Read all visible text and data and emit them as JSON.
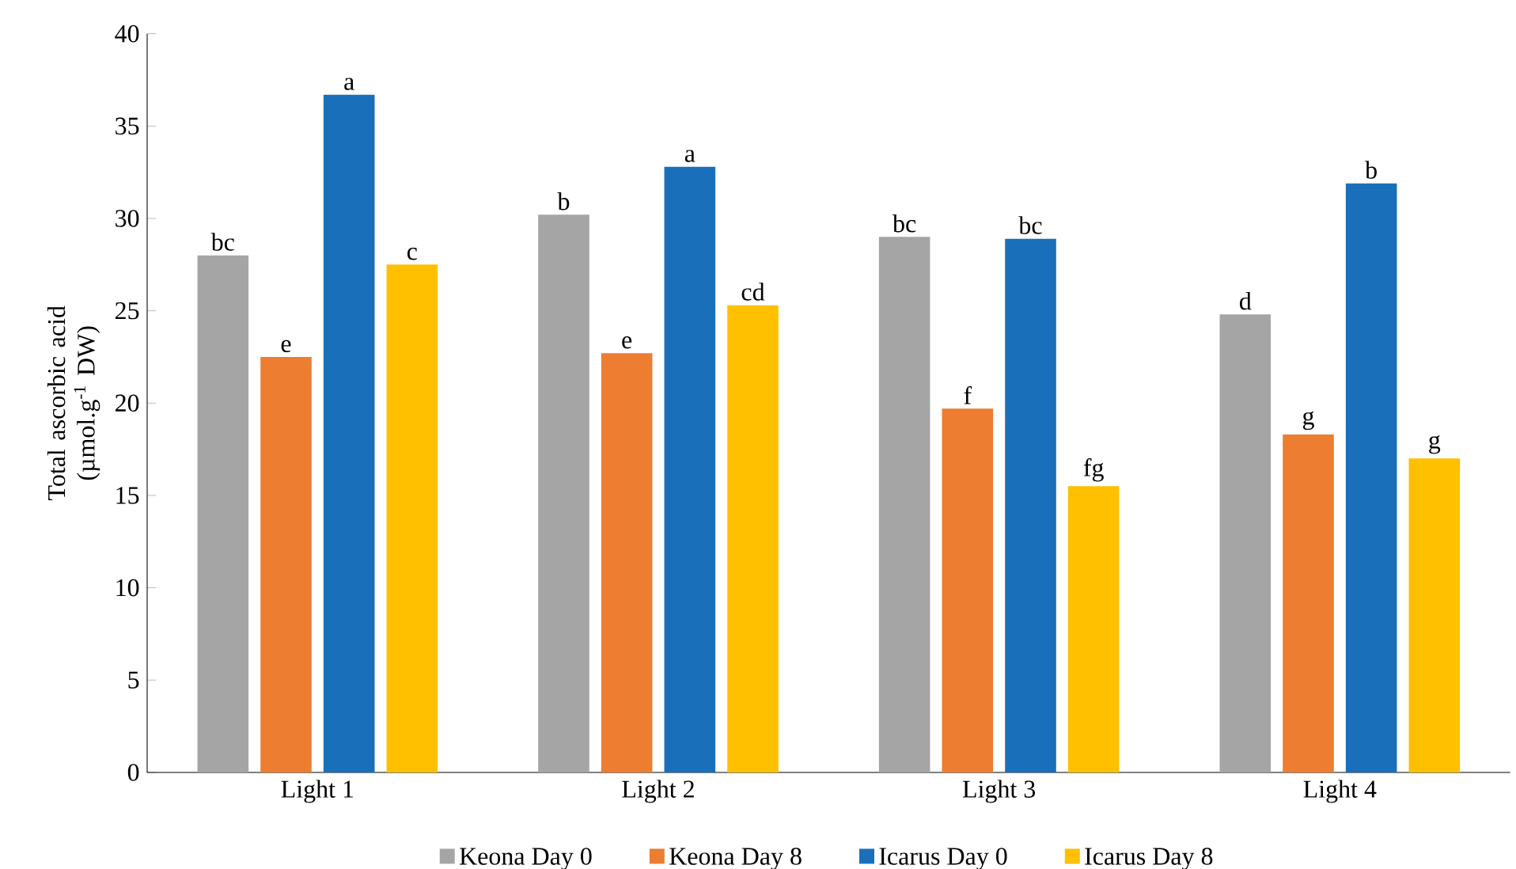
{
  "chart_data": {
    "type": "bar",
    "ylabel": "Total ascorbic acid (µmol.g$^{-1}$ DW)",
    "categories": [
      "Light 1",
      "Light 2",
      "Light 3",
      "Light 4"
    ],
    "series": [
      {
        "name": "Keona Day 0",
        "color": "#a5a5a5",
        "values": [
          28.0,
          30.2,
          29.0,
          24.8
        ]
      },
      {
        "name": "Keona Day 8",
        "color": "#ed7d31",
        "values": [
          22.5,
          22.7,
          19.7,
          18.3
        ]
      },
      {
        "name": "Icarus Day 0",
        "color": "#1a6fba",
        "values": [
          36.7,
          32.8,
          28.9,
          31.9
        ]
      },
      {
        "name": "Icarus Day 8",
        "color": "#ffc000",
        "values": [
          27.5,
          25.3,
          15.5,
          17.0
        ]
      }
    ],
    "ylim": [
      0,
      40
    ],
    "yticks": [
      0,
      5,
      10,
      15,
      20,
      25,
      30,
      35,
      40
    ],
    "grid": false,
    "legend": "bottom",
    "annotations": [
      "bc",
      "e",
      "a",
      "c",
      "b",
      "e",
      "a",
      "cd",
      "bc",
      "f",
      "bc",
      "fg",
      "d",
      "g",
      "b",
      "g"
    ]
  }
}
